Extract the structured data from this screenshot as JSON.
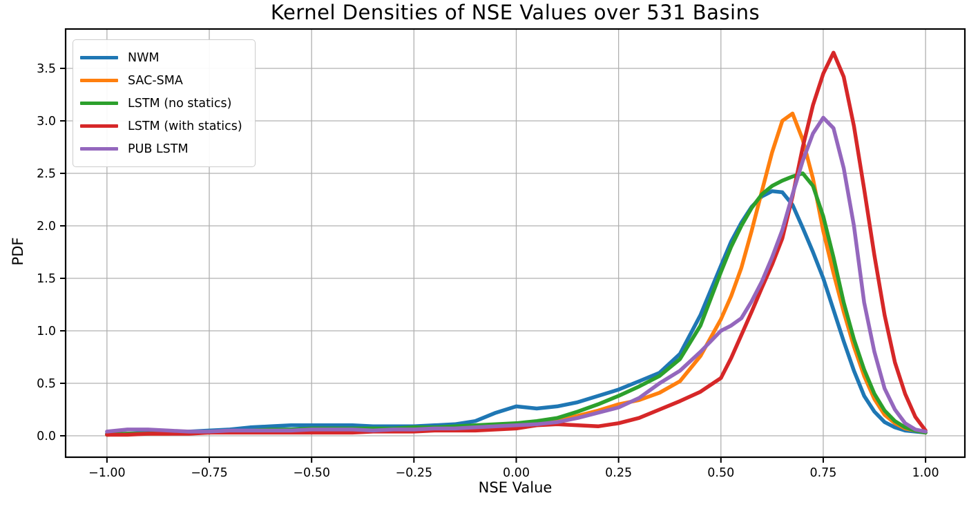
{
  "title": "Kernel Densities of NSE Values over 531 Basins",
  "chart_data": {
    "type": "line",
    "title": "Kernel Densities of NSE Values over 531 Basins",
    "xlabel": "NSE Value",
    "ylabel": "PDF",
    "xlim": [
      -1.101,
      1.096
    ],
    "ylim": [
      -0.204,
      3.875
    ],
    "grid": true,
    "grid_color": "#b0b0b0",
    "axis_color": "#000000",
    "legend_position": "upper left",
    "x_ticks": {
      "values": [
        -1.0,
        -0.75,
        -0.5,
        -0.25,
        0.0,
        0.25,
        0.5,
        0.75,
        1.0
      ],
      "labels": [
        "−1.00",
        "−0.75",
        "−0.50",
        "−0.25",
        "0.00",
        "0.25",
        "0.50",
        "0.75",
        "1.00"
      ]
    },
    "y_ticks": {
      "values": [
        0.0,
        0.5,
        1.0,
        1.5,
        2.0,
        2.5,
        3.0,
        3.5
      ],
      "labels": [
        "0.0",
        "0.5",
        "1.0",
        "1.5",
        "2.0",
        "2.5",
        "3.0",
        "3.5"
      ]
    },
    "x": [
      -1.0,
      -0.95,
      -0.9,
      -0.85,
      -0.8,
      -0.75,
      -0.7,
      -0.65,
      -0.6,
      -0.55,
      -0.5,
      -0.45,
      -0.4,
      -0.35,
      -0.3,
      -0.25,
      -0.2,
      -0.15,
      -0.1,
      -0.05,
      0.0,
      0.05,
      0.1,
      0.15,
      0.2,
      0.25,
      0.3,
      0.35,
      0.4,
      0.45,
      0.5,
      0.525,
      0.55,
      0.575,
      0.6,
      0.625,
      0.65,
      0.675,
      0.7,
      0.725,
      0.75,
      0.775,
      0.8,
      0.825,
      0.85,
      0.875,
      0.9,
      0.925,
      0.95,
      0.975,
      1.0
    ],
    "series": [
      {
        "name": "NWM",
        "color": "#1f77b4",
        "values": [
          0.02,
          0.02,
          0.03,
          0.03,
          0.04,
          0.05,
          0.06,
          0.08,
          0.09,
          0.1,
          0.1,
          0.1,
          0.1,
          0.09,
          0.09,
          0.09,
          0.1,
          0.11,
          0.14,
          0.22,
          0.28,
          0.26,
          0.28,
          0.32,
          0.38,
          0.44,
          0.52,
          0.6,
          0.78,
          1.15,
          1.62,
          1.85,
          2.03,
          2.18,
          2.28,
          2.33,
          2.32,
          2.2,
          1.98,
          1.75,
          1.5,
          1.2,
          0.9,
          0.62,
          0.38,
          0.23,
          0.13,
          0.08,
          0.05,
          0.04,
          0.03
        ]
      },
      {
        "name": "SAC-SMA",
        "color": "#ff7f0e",
        "values": [
          0.01,
          0.02,
          0.02,
          0.02,
          0.03,
          0.03,
          0.04,
          0.04,
          0.05,
          0.05,
          0.05,
          0.06,
          0.06,
          0.06,
          0.06,
          0.07,
          0.07,
          0.08,
          0.08,
          0.09,
          0.1,
          0.12,
          0.15,
          0.19,
          0.24,
          0.3,
          0.34,
          0.41,
          0.52,
          0.76,
          1.11,
          1.33,
          1.6,
          1.95,
          2.33,
          2.7,
          3.0,
          3.07,
          2.82,
          2.45,
          1.95,
          1.55,
          1.18,
          0.85,
          0.57,
          0.35,
          0.2,
          0.12,
          0.07,
          0.05,
          0.03
        ]
      },
      {
        "name": "LSTM (no statics)",
        "color": "#2ca02c",
        "values": [
          0.01,
          0.02,
          0.02,
          0.03,
          0.03,
          0.04,
          0.04,
          0.05,
          0.06,
          0.06,
          0.07,
          0.07,
          0.07,
          0.07,
          0.07,
          0.08,
          0.08,
          0.09,
          0.1,
          0.11,
          0.12,
          0.14,
          0.17,
          0.23,
          0.3,
          0.38,
          0.47,
          0.57,
          0.73,
          1.05,
          1.56,
          1.8,
          2.0,
          2.17,
          2.3,
          2.38,
          2.43,
          2.47,
          2.5,
          2.38,
          2.09,
          1.7,
          1.27,
          0.92,
          0.63,
          0.4,
          0.24,
          0.14,
          0.08,
          0.05,
          0.03
        ]
      },
      {
        "name": "LSTM (with statics)",
        "color": "#d62728",
        "values": [
          0.01,
          0.01,
          0.02,
          0.02,
          0.02,
          0.03,
          0.03,
          0.03,
          0.03,
          0.03,
          0.03,
          0.03,
          0.03,
          0.04,
          0.04,
          0.04,
          0.05,
          0.05,
          0.05,
          0.06,
          0.07,
          0.1,
          0.11,
          0.1,
          0.09,
          0.12,
          0.17,
          0.25,
          0.33,
          0.42,
          0.55,
          0.74,
          0.96,
          1.18,
          1.41,
          1.63,
          1.88,
          2.28,
          2.75,
          3.15,
          3.45,
          3.65,
          3.42,
          2.95,
          2.35,
          1.72,
          1.15,
          0.7,
          0.4,
          0.18,
          0.05
        ]
      },
      {
        "name": "PUB LSTM",
        "color": "#9467bd",
        "values": [
          0.04,
          0.06,
          0.06,
          0.05,
          0.04,
          0.04,
          0.05,
          0.05,
          0.05,
          0.05,
          0.06,
          0.06,
          0.06,
          0.05,
          0.06,
          0.06,
          0.07,
          0.07,
          0.08,
          0.09,
          0.1,
          0.11,
          0.13,
          0.17,
          0.22,
          0.27,
          0.36,
          0.5,
          0.62,
          0.8,
          1.0,
          1.05,
          1.12,
          1.28,
          1.47,
          1.7,
          1.96,
          2.3,
          2.62,
          2.88,
          3.03,
          2.93,
          2.55,
          2.0,
          1.27,
          0.8,
          0.45,
          0.25,
          0.12,
          0.06,
          0.04
        ]
      }
    ]
  }
}
